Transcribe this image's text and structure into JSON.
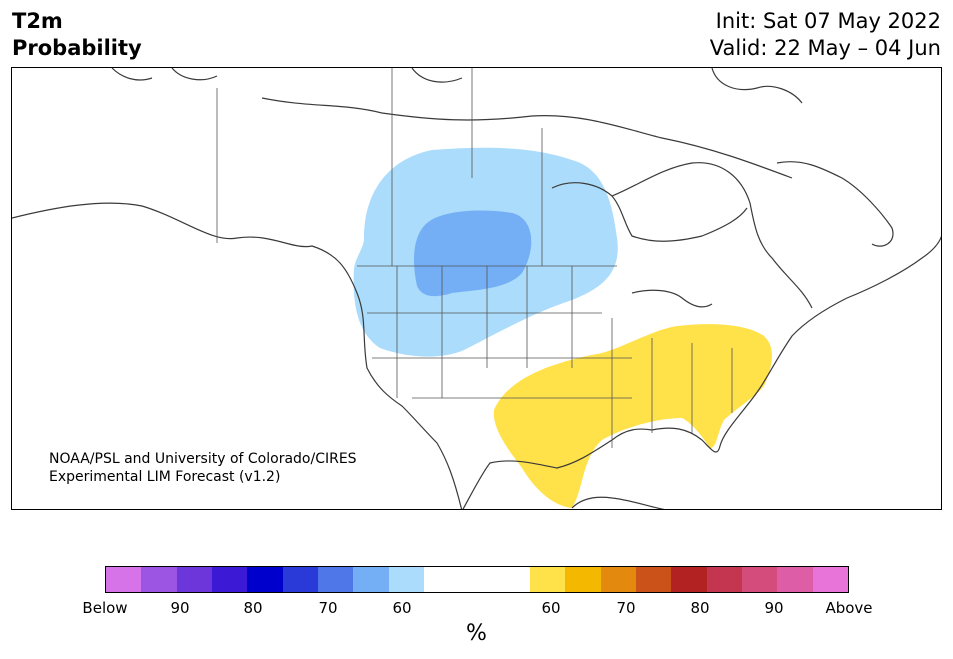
{
  "title": {
    "line1": "T2m",
    "line2": "Probability"
  },
  "init": "Init: Sat 07 May 2022",
  "valid": "Valid: 22 May – 04 Jun",
  "credit": {
    "line1": "NOAA/PSL and University of Colorado/CIRES",
    "line2": "Experimental LIM Forecast (v1.2)"
  },
  "colorbar": {
    "colors": [
      "#d673e8",
      "#9c55e3",
      "#6c36db",
      "#3c19d4",
      "#0000cc",
      "#2a3ad9",
      "#5077e8",
      "#74aef5",
      "#acdcfb",
      "#ffffff",
      "#ffffff",
      "#ffffff",
      "#ffe14a",
      "#f5b800",
      "#e3890e",
      "#cb5219",
      "#b32222",
      "#c4354f",
      "#d34c7c",
      "#dd5ea6",
      "#e873d9"
    ],
    "tick_labels": [
      "Below",
      "90",
      "80",
      "70",
      "60",
      "60",
      "70",
      "80",
      "90",
      "Above"
    ],
    "unit": "%"
  },
  "map": {
    "shading": [
      {
        "category": "below 60",
        "color": "#acdcfb",
        "region": "northern Rockies, northern Plains and south-central Canada"
      },
      {
        "category": "below 70",
        "color": "#74aef5",
        "region": "Montana and southern Saskatchewan"
      },
      {
        "category": "above 60",
        "color": "#ffe14a",
        "region": "Texas, Gulf Coast, Southeast and Mid-Atlantic"
      }
    ]
  }
}
